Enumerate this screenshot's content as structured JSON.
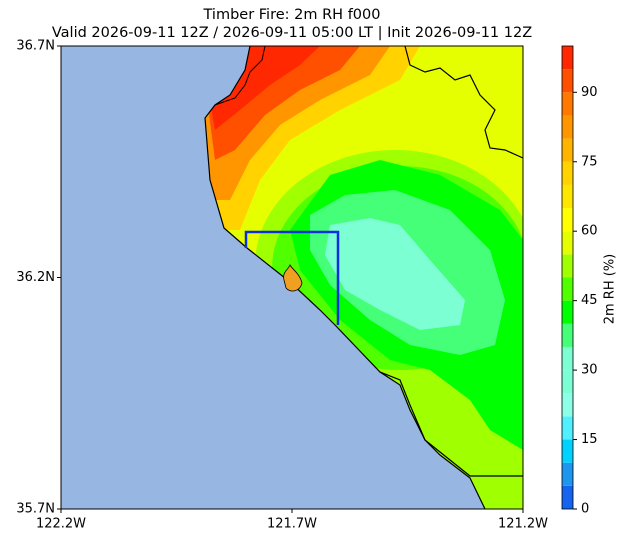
{
  "chart_data": {
    "type": "contour-map",
    "title": "Timber Fire: 2m RH f000",
    "subtitle": "Valid 2026-09-11 12Z / 2026-09-11 05:00 LT | Init 2026-09-11 12Z",
    "xlim": [
      -122.2,
      -121.2
    ],
    "xticks": [
      {
        "value": -122.2,
        "label": "122.2W"
      },
      {
        "value": -121.7,
        "label": "121.7W"
      },
      {
        "value": -121.2,
        "label": "121.2W"
      }
    ],
    "ylim": [
      35.7,
      36.7
    ],
    "yticks": [
      {
        "value": 35.7,
        "label": "35.7N"
      },
      {
        "value": 36.2,
        "label": "36.2N"
      },
      {
        "value": 36.7,
        "label": "36.7N"
      }
    ],
    "colorbar": {
      "label": "2m RH (%)",
      "levels": [
        0,
        5,
        10,
        15,
        20,
        25,
        30,
        35,
        40,
        45,
        50,
        55,
        60,
        65,
        70,
        75,
        80,
        85,
        90,
        95,
        100
      ],
      "colors": [
        "#1464f0",
        "#1e96f0",
        "#00d2ff",
        "#50f0ff",
        "#8cffe6",
        "#7dffd4",
        "#7dffd4",
        "#46ff78",
        "#00ff00",
        "#50ff00",
        "#a0ff00",
        "#e6ff00",
        "#ffff00",
        "#ffe600",
        "#ffd200",
        "#ffb400",
        "#ff9600",
        "#ff7800",
        "#ff5000",
        "#ff2800"
      ],
      "ticks": [
        0,
        15,
        30,
        45,
        60,
        75,
        90
      ]
    }
  }
}
